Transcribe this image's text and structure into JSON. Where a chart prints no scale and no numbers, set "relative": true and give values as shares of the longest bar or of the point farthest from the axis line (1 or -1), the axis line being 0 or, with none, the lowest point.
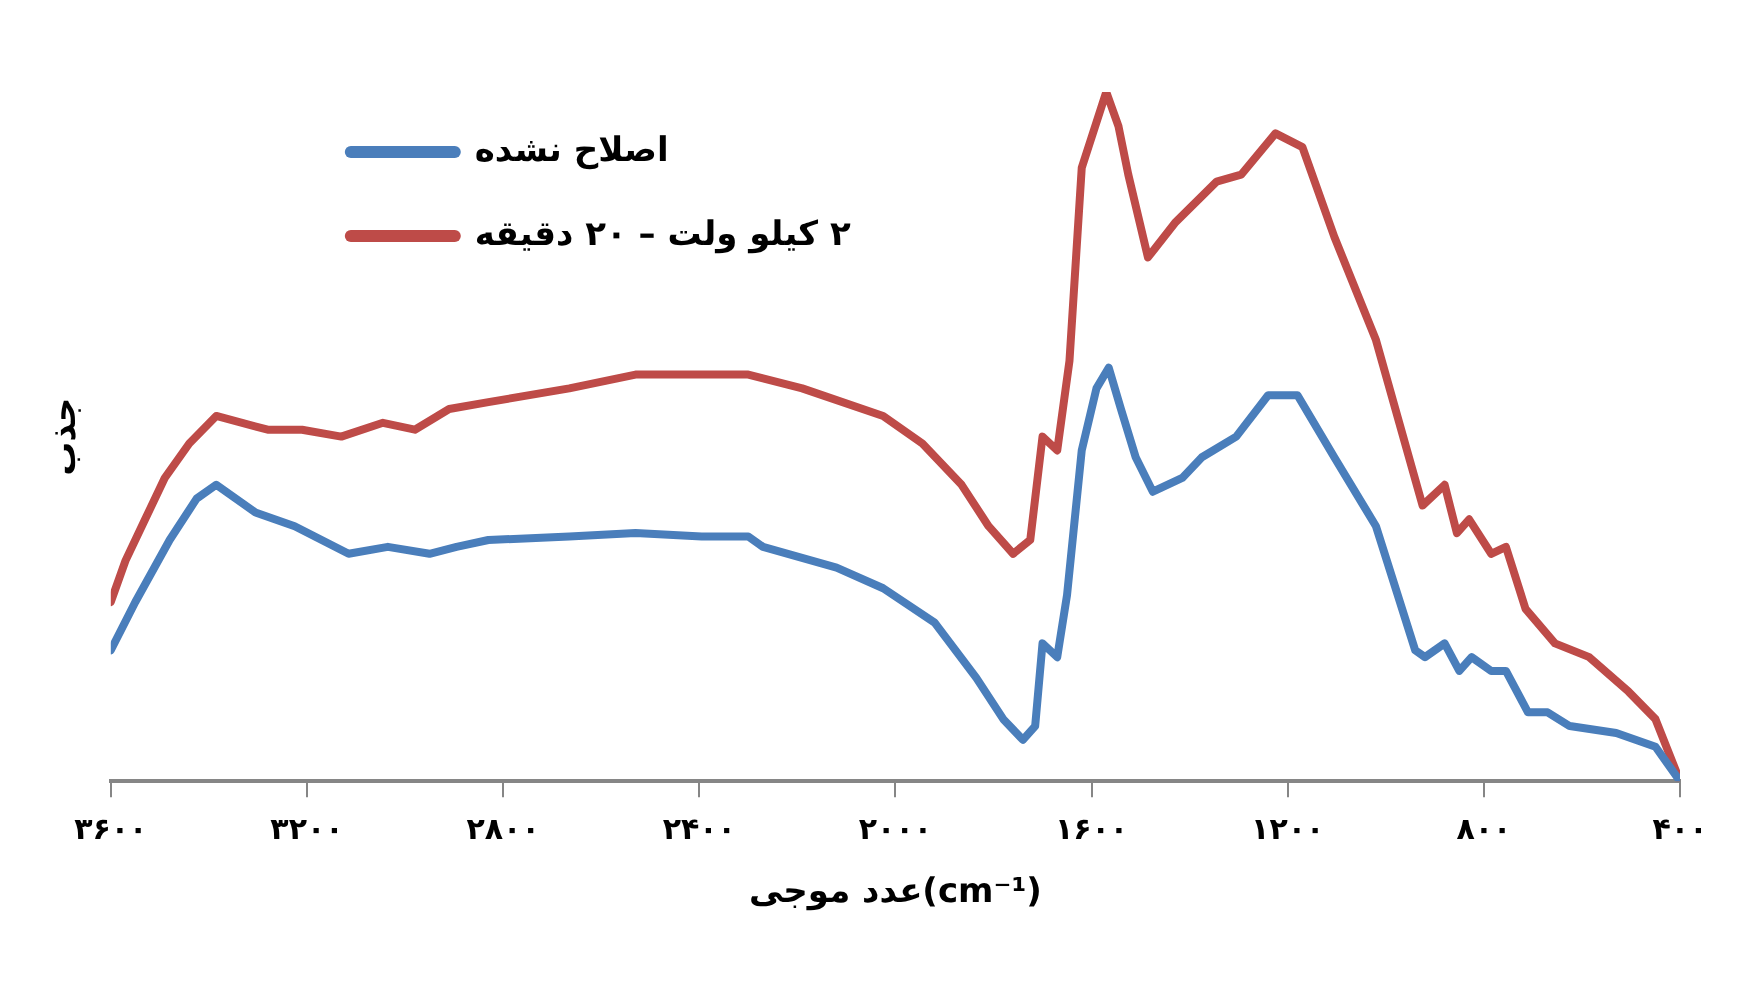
{
  "chart_data": {
    "type": "line",
    "relative": true,
    "xlabel": "عدد موجی(cm⁻¹)",
    "ylabel": "جذب",
    "legend": "top left",
    "grid": false,
    "marker": "none",
    "line_style": "solid",
    "xlim": [
      3600,
      400
    ],
    "xticks": [
      {
        "value": 3600,
        "label": "۳۶۰۰"
      },
      {
        "value": 3200,
        "label": "۳۲۰۰"
      },
      {
        "value": 2800,
        "label": "۲۸۰۰"
      },
      {
        "value": 2400,
        "label": "۲۴۰۰"
      },
      {
        "value": 2000,
        "label": "۲۰۰۰"
      },
      {
        "value": 1600,
        "label": "۱۶۰۰"
      },
      {
        "value": 1200,
        "label": "۱۲۰۰"
      },
      {
        "value": 800,
        "label": "۸۰۰"
      },
      {
        "value": 400,
        "label": "۴۰۰"
      }
    ],
    "series": [
      {
        "name": "اصلاح نشده",
        "color": "#4a7ebb",
        "x": [
          3600,
          3550,
          3480,
          3425,
          3385,
          3305,
          3225,
          3115,
          3035,
          2950,
          2895,
          2830,
          2665,
          2530,
          2395,
          2300,
          2270,
          2120,
          2025,
          1920,
          1835,
          1780,
          1740,
          1715,
          1700,
          1670,
          1650,
          1620,
          1590,
          1565,
          1540,
          1510,
          1475,
          1415,
          1375,
          1305,
          1240,
          1180,
          1105,
          1020,
          940,
          920,
          880,
          850,
          825,
          785,
          755,
          710,
          670,
          625,
          530,
          450,
          400
        ],
        "values": [
          0.19,
          0.26,
          0.35,
          0.41,
          0.43,
          0.39,
          0.37,
          0.33,
          0.34,
          0.33,
          0.34,
          0.35,
          0.355,
          0.36,
          0.355,
          0.355,
          0.34,
          0.31,
          0.28,
          0.23,
          0.15,
          0.09,
          0.06,
          0.08,
          0.2,
          0.18,
          0.27,
          0.48,
          0.57,
          0.6,
          0.54,
          0.47,
          0.42,
          0.44,
          0.47,
          0.5,
          0.56,
          0.56,
          0.47,
          0.37,
          0.19,
          0.18,
          0.2,
          0.16,
          0.18,
          0.16,
          0.16,
          0.1,
          0.1,
          0.08,
          0.07,
          0.05,
          0
        ]
      },
      {
        "name": "۲ کیلو ولت – ۲۰ دقیقه",
        "color": "#be4b48",
        "x": [
          3600,
          3570,
          3530,
          3490,
          3440,
          3385,
          3280,
          3210,
          3130,
          3045,
          2980,
          2910,
          2830,
          2665,
          2530,
          2395,
          2300,
          2190,
          2025,
          1945,
          1865,
          1810,
          1760,
          1725,
          1700,
          1670,
          1645,
          1620,
          1570,
          1545,
          1525,
          1485,
          1430,
          1345,
          1295,
          1225,
          1170,
          1105,
          1020,
          925,
          880,
          855,
          830,
          785,
          755,
          715,
          655,
          585,
          505,
          450,
          400
        ],
        "values": [
          0.26,
          0.32,
          0.38,
          0.44,
          0.49,
          0.53,
          0.51,
          0.51,
          0.5,
          0.52,
          0.51,
          0.54,
          0.55,
          0.57,
          0.59,
          0.59,
          0.59,
          0.57,
          0.53,
          0.49,
          0.43,
          0.37,
          0.33,
          0.35,
          0.5,
          0.48,
          0.61,
          0.89,
          1,
          0.95,
          0.88,
          0.76,
          0.81,
          0.87,
          0.88,
          0.94,
          0.92,
          0.79,
          0.64,
          0.4,
          0.43,
          0.36,
          0.38,
          0.33,
          0.34,
          0.25,
          0.2,
          0.18,
          0.13,
          0.09,
          0
        ]
      }
    ]
  }
}
